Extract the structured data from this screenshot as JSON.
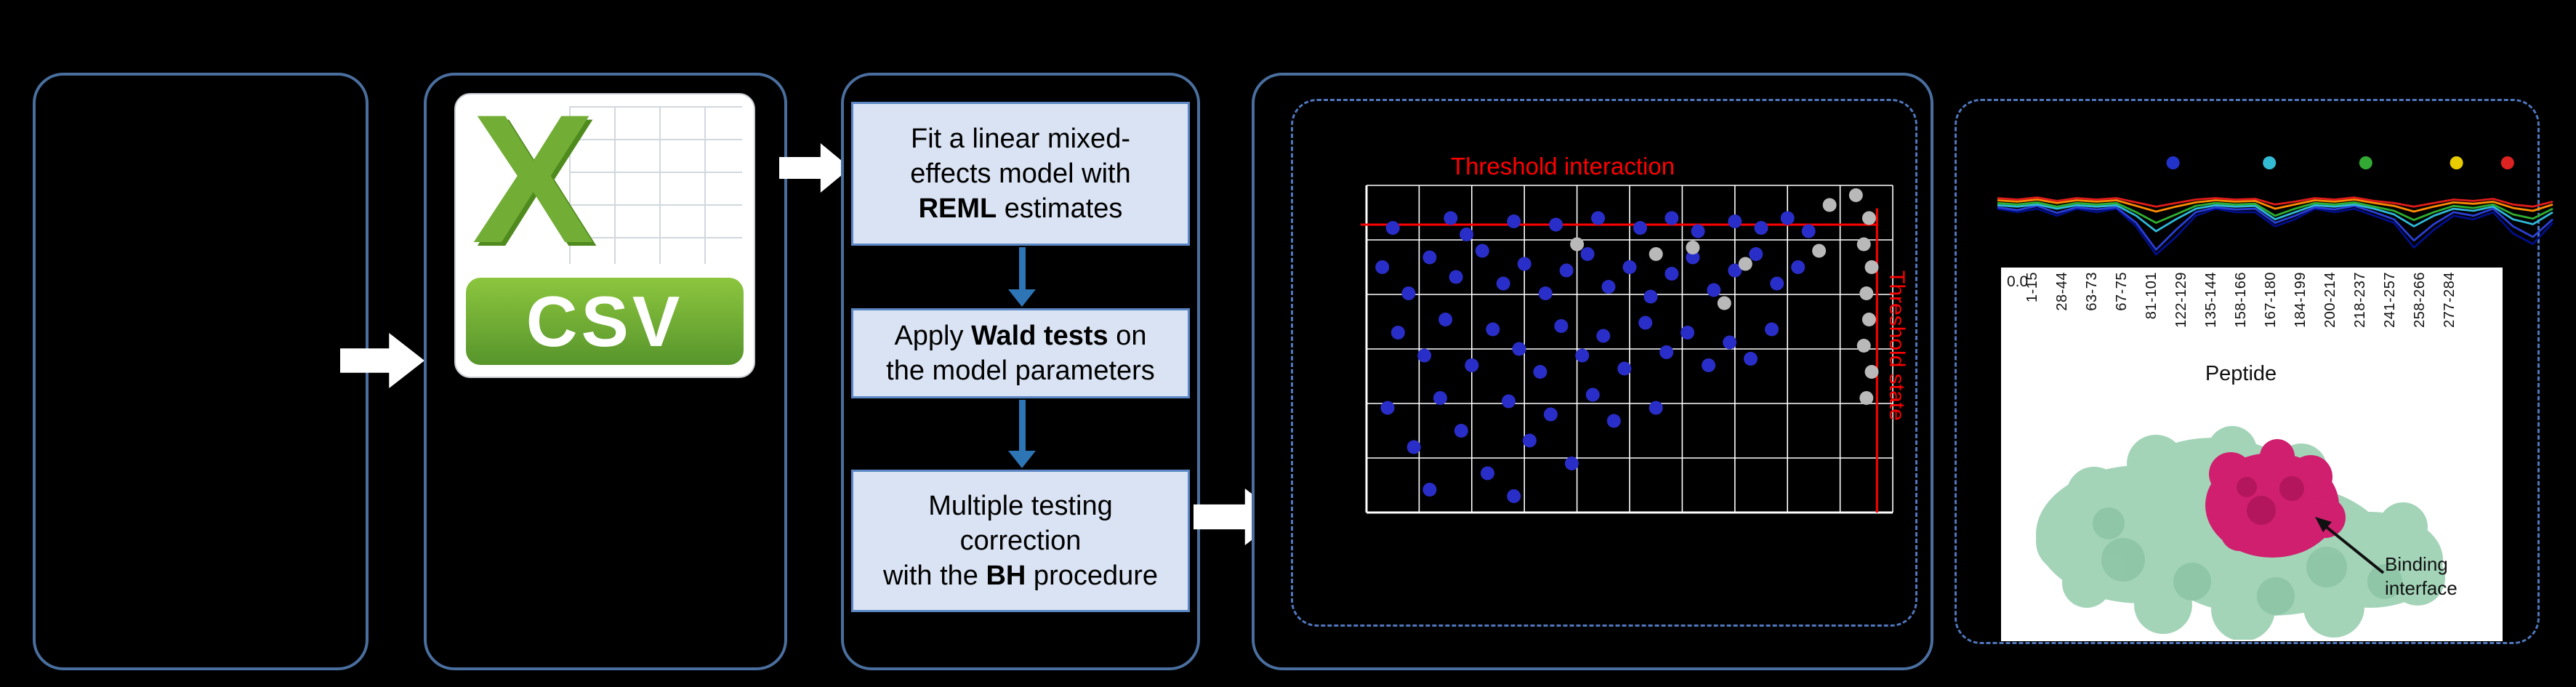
{
  "figure": {
    "background": "#000000",
    "panel_border_color": "#4a6f9f",
    "dashed_border_color": "#4f77bd",
    "step_box_fill": "#dae3f3",
    "step_arrow_color": "#2e75b6",
    "threshold_color": "#ff0000"
  },
  "csv_icon": {
    "x_label": "X",
    "banner_label": "CSV"
  },
  "steps": {
    "box1": {
      "line1": "Fit a linear mixed-",
      "line2": "effects model with",
      "bold": "REML",
      "line3_rest": " estimates"
    },
    "box2": {
      "line1_pre": "Apply ",
      "bold": "Wald tests",
      "line1_post": " on",
      "line2": "the model parameters"
    },
    "box3": {
      "line1": "Multiple testing",
      "line2": "correction",
      "line3_pre": "with the ",
      "bold": "BH",
      "line3_post": " procedure"
    }
  },
  "scatter_labels": {
    "horizontal": "Threshold interaction",
    "vertical": "Threshold state"
  },
  "peptide_axis": {
    "y_tick": "0.0",
    "axis_label": "Peptide",
    "tick_labels": [
      "1-15",
      "28-44",
      "63-73",
      "67-75",
      "81-101",
      "122-129",
      "135-144",
      "158-166",
      "167-180",
      "184-199",
      "200-214",
      "218-237",
      "241-257",
      "258-266",
      "277-284"
    ]
  },
  "protein": {
    "annotation_line1": "Binding",
    "annotation_line2": "interface"
  },
  "chart_data": [
    {
      "id": "significance-scatter",
      "type": "scatter",
      "grid": {
        "cols": 10,
        "rows": 6,
        "line_color": "#ffffff"
      },
      "threshold_color": "#ff0000",
      "threshold_h_frac": 0.12,
      "threshold_v_frac": 0.97,
      "series": [
        {
          "name": "significant-peptides",
          "color": "#2a2ec8",
          "points": [
            [
              0.05,
              0.13
            ],
            [
              0.16,
              0.1
            ],
            [
              0.19,
              0.15
            ],
            [
              0.28,
              0.11
            ],
            [
              0.36,
              0.12
            ],
            [
              0.44,
              0.1
            ],
            [
              0.52,
              0.13
            ],
            [
              0.58,
              0.1
            ],
            [
              0.63,
              0.14
            ],
            [
              0.7,
              0.11
            ],
            [
              0.75,
              0.13
            ],
            [
              0.8,
              0.1
            ],
            [
              0.84,
              0.14
            ],
            [
              0.03,
              0.25
            ],
            [
              0.08,
              0.33
            ],
            [
              0.12,
              0.22
            ],
            [
              0.17,
              0.28
            ],
            [
              0.22,
              0.2
            ],
            [
              0.26,
              0.3
            ],
            [
              0.3,
              0.24
            ],
            [
              0.34,
              0.33
            ],
            [
              0.38,
              0.26
            ],
            [
              0.42,
              0.21
            ],
            [
              0.46,
              0.31
            ],
            [
              0.5,
              0.25
            ],
            [
              0.54,
              0.34
            ],
            [
              0.58,
              0.27
            ],
            [
              0.62,
              0.22
            ],
            [
              0.66,
              0.32
            ],
            [
              0.7,
              0.26
            ],
            [
              0.74,
              0.21
            ],
            [
              0.78,
              0.3
            ],
            [
              0.82,
              0.25
            ],
            [
              0.06,
              0.45
            ],
            [
              0.11,
              0.52
            ],
            [
              0.15,
              0.41
            ],
            [
              0.2,
              0.55
            ],
            [
              0.24,
              0.44
            ],
            [
              0.29,
              0.5
            ],
            [
              0.33,
              0.57
            ],
            [
              0.37,
              0.43
            ],
            [
              0.41,
              0.52
            ],
            [
              0.45,
              0.46
            ],
            [
              0.49,
              0.56
            ],
            [
              0.53,
              0.42
            ],
            [
              0.57,
              0.51
            ],
            [
              0.61,
              0.45
            ],
            [
              0.65,
              0.55
            ],
            [
              0.69,
              0.48
            ],
            [
              0.73,
              0.53
            ],
            [
              0.77,
              0.44
            ],
            [
              0.04,
              0.68
            ],
            [
              0.09,
              0.8
            ],
            [
              0.14,
              0.65
            ],
            [
              0.18,
              0.75
            ],
            [
              0.23,
              0.88
            ],
            [
              0.27,
              0.66
            ],
            [
              0.31,
              0.78
            ],
            [
              0.35,
              0.7
            ],
            [
              0.39,
              0.85
            ],
            [
              0.43,
              0.64
            ],
            [
              0.28,
              0.95
            ],
            [
              0.12,
              0.93
            ],
            [
              0.47,
              0.72
            ],
            [
              0.55,
              0.68
            ]
          ]
        },
        {
          "name": "non-significant-peptides",
          "color": "#b9b9b9",
          "points": [
            [
              0.88,
              0.06
            ],
            [
              0.93,
              0.03
            ],
            [
              0.955,
              0.1
            ],
            [
              0.945,
              0.18
            ],
            [
              0.96,
              0.25
            ],
            [
              0.95,
              0.33
            ],
            [
              0.955,
              0.41
            ],
            [
              0.945,
              0.49
            ],
            [
              0.96,
              0.57
            ],
            [
              0.95,
              0.65
            ],
            [
              0.4,
              0.18
            ],
            [
              0.55,
              0.21
            ],
            [
              0.62,
              0.19
            ],
            [
              0.72,
              0.24
            ],
            [
              0.68,
              0.36
            ],
            [
              0.86,
              0.2
            ]
          ]
        }
      ]
    },
    {
      "id": "deuterium-uptake-profile",
      "type": "line",
      "x_count": 29,
      "series": [
        {
          "name": "series-navy",
          "color": "#000f8a",
          "values": [
            0.3,
            0.35,
            0.3,
            0.4,
            0.3,
            0.35,
            0.3,
            0.55,
            0.95,
            0.7,
            0.4,
            0.3,
            0.35,
            0.35,
            0.55,
            0.45,
            0.3,
            0.35,
            0.3,
            0.4,
            0.5,
            0.85,
            0.6,
            0.4,
            0.45,
            0.35,
            0.65,
            0.8,
            0.5
          ]
        },
        {
          "name": "series-blue",
          "color": "#2a3fd4",
          "values": [
            0.28,
            0.32,
            0.26,
            0.36,
            0.28,
            0.31,
            0.28,
            0.5,
            0.88,
            0.6,
            0.35,
            0.28,
            0.31,
            0.3,
            0.5,
            0.4,
            0.28,
            0.31,
            0.26,
            0.35,
            0.45,
            0.75,
            0.52,
            0.35,
            0.4,
            0.3,
            0.55,
            0.7,
            0.45
          ]
        },
        {
          "name": "series-cyan",
          "color": "#2fb9d8",
          "values": [
            0.25,
            0.27,
            0.24,
            0.3,
            0.25,
            0.27,
            0.25,
            0.4,
            0.62,
            0.45,
            0.3,
            0.25,
            0.27,
            0.26,
            0.45,
            0.35,
            0.25,
            0.27,
            0.24,
            0.3,
            0.38,
            0.55,
            0.4,
            0.3,
            0.33,
            0.27,
            0.45,
            0.52,
            0.35
          ]
        },
        {
          "name": "series-green",
          "color": "#2fae2f",
          "values": [
            0.22,
            0.24,
            0.21,
            0.27,
            0.22,
            0.24,
            0.22,
            0.35,
            0.5,
            0.38,
            0.26,
            0.22,
            0.24,
            0.23,
            0.4,
            0.3,
            0.22,
            0.24,
            0.21,
            0.27,
            0.33,
            0.46,
            0.35,
            0.26,
            0.29,
            0.24,
            0.38,
            0.44,
            0.3
          ]
        },
        {
          "name": "series-orange",
          "color": "#ff8c00",
          "values": [
            0.18,
            0.2,
            0.17,
            0.22,
            0.18,
            0.2,
            0.18,
            0.26,
            0.34,
            0.27,
            0.21,
            0.18,
            0.2,
            0.19,
            0.3,
            0.24,
            0.18,
            0.2,
            0.17,
            0.22,
            0.26,
            0.34,
            0.27,
            0.21,
            0.23,
            0.2,
            0.29,
            0.33,
            0.24
          ]
        },
        {
          "name": "series-red",
          "color": "#e01b1b",
          "values": [
            0.15,
            0.17,
            0.14,
            0.19,
            0.15,
            0.17,
            0.15,
            0.21,
            0.27,
            0.22,
            0.17,
            0.15,
            0.17,
            0.16,
            0.24,
            0.2,
            0.15,
            0.17,
            0.14,
            0.19,
            0.22,
            0.27,
            0.22,
            0.17,
            0.19,
            0.16,
            0.24,
            0.27,
            0.2
          ]
        }
      ],
      "legend_dots": [
        {
          "color": "#2233cc",
          "x_frac": 0.32
        },
        {
          "color": "#33bbd4",
          "x_frac": 0.49
        },
        {
          "color": "#33aa33",
          "x_frac": 0.66
        },
        {
          "color": "#e8cc00",
          "x_frac": 0.82
        },
        {
          "color": "#dd2222",
          "x_frac": 0.91
        }
      ]
    }
  ]
}
